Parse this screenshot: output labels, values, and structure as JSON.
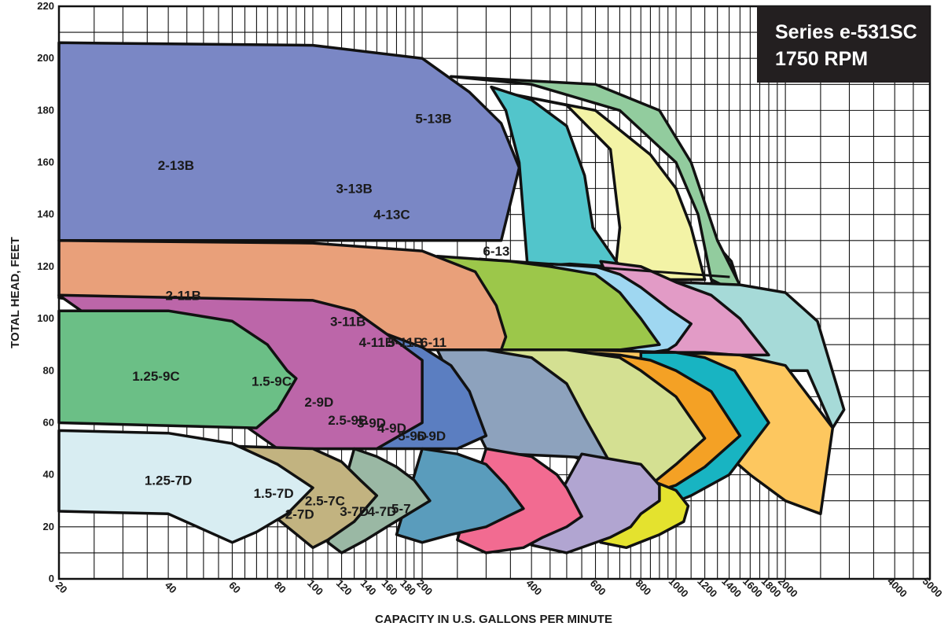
{
  "chart_data": {
    "type": "area",
    "title": "Series e-531SC",
    "subtitle": "1750 RPM",
    "xlabel": "CAPACITY IN U.S. GALLONS PER MINUTE",
    "ylabel": "TOTAL HEAD, FEET",
    "x_scale": "log",
    "xlim": [
      20,
      5000
    ],
    "ylim": [
      0,
      220
    ],
    "x_ticks": [
      20,
      40,
      60,
      80,
      100,
      120,
      140,
      160,
      180,
      200,
      400,
      600,
      800,
      1000,
      1200,
      1400,
      1600,
      1800,
      2000,
      4000,
      5000
    ],
    "y_ticks": [
      0,
      20,
      40,
      60,
      80,
      100,
      120,
      140,
      160,
      180,
      200,
      220
    ],
    "grid": true,
    "colors": {
      "6-13": "#5c93b8",
      "5-13B": "#92cc9e",
      "4-13C": "#f3f3a6",
      "3-13B": "#52c5cb",
      "2-13B": "#7a87c5",
      "6-11": "#a6dad8",
      "5-11B": "#e29bc6",
      "4-11B": "#9fd7f1",
      "3-11B": "#9cc74a",
      "2-11B": "#e9a07a",
      "6-9D": "#fdc75f",
      "5-9D": "#18b4c2",
      "4-9D": "#f4a125",
      "3-9D": "#d4e092",
      "2.5-9B": "#8da2bd",
      "2-9D": "#5b7ec1",
      "1.5-9C": "#bc66a9",
      "1.25-9C": "#6bbf86",
      "5-7": "#e4e22e",
      "4-7D": "#b1a5d1",
      "3-7D": "#f26b91",
      "2.5-7C": "#5a9cbc",
      "2-7D": "#9ab8a4",
      "1.5-7D": "#c2b380",
      "1.25-7D": "#d8edf2"
    },
    "regions": [
      {
        "name": "6-13",
        "points": [
          [
            1300,
            128
          ],
          [
            1420,
            122
          ],
          [
            1560,
            104
          ],
          [
            1480,
            110
          ],
          [
            1390,
            112
          ],
          [
            1250,
            113
          ]
        ]
      },
      {
        "name": "5-13B",
        "points": [
          [
            240,
            193
          ],
          [
            600,
            190
          ],
          [
            900,
            180
          ],
          [
            1100,
            160
          ],
          [
            1300,
            130
          ],
          [
            1560,
            108
          ],
          [
            1380,
            112
          ],
          [
            1250,
            115
          ],
          [
            1150,
            140
          ],
          [
            1000,
            160
          ],
          [
            700,
            180
          ],
          [
            400,
            190
          ]
        ]
      },
      {
        "name": "4-13C",
        "points": [
          [
            360,
            186
          ],
          [
            600,
            180
          ],
          [
            850,
            163
          ],
          [
            1000,
            150
          ],
          [
            1100,
            135
          ],
          [
            1200,
            115
          ],
          [
            950,
            115
          ],
          [
            850,
            115
          ],
          [
            680,
            118
          ],
          [
            700,
            135
          ],
          [
            660,
            165
          ],
          [
            500,
            182
          ]
        ]
      },
      {
        "name": "3-13B",
        "points": [
          [
            310,
            189
          ],
          [
            400,
            184
          ],
          [
            500,
            174
          ],
          [
            560,
            155
          ],
          [
            590,
            135
          ],
          [
            700,
            120
          ],
          [
            650,
            120
          ],
          [
            510,
            121
          ],
          [
            390,
            120
          ],
          [
            370,
            160
          ],
          [
            340,
            180
          ]
        ]
      },
      {
        "name": "2-13B",
        "points": [
          [
            20,
            206
          ],
          [
            100,
            205
          ],
          [
            200,
            200
          ],
          [
            270,
            187
          ],
          [
            330,
            175
          ],
          [
            370,
            158
          ],
          [
            330,
            130
          ],
          [
            200,
            130
          ],
          [
            20,
            130
          ]
        ]
      },
      {
        "name": "6-11",
        "points": [
          [
            1000,
            114
          ],
          [
            1500,
            113
          ],
          [
            2000,
            110
          ],
          [
            2450,
            99
          ],
          [
            2900,
            65
          ],
          [
            2700,
            58
          ],
          [
            2300,
            80
          ],
          [
            2000,
            80
          ],
          [
            1500,
            85
          ]
        ]
      },
      {
        "name": "5-11B",
        "points": [
          [
            620,
            122
          ],
          [
            800,
            120
          ],
          [
            1000,
            114
          ],
          [
            1250,
            109
          ],
          [
            1500,
            100
          ],
          [
            1800,
            86
          ],
          [
            1450,
            86
          ],
          [
            1200,
            87
          ],
          [
            1000,
            87
          ],
          [
            800,
            88
          ]
        ]
      },
      {
        "name": "4-11B",
        "points": [
          [
            450,
            121
          ],
          [
            600,
            120
          ],
          [
            700,
            117
          ],
          [
            800,
            112
          ],
          [
            950,
            104
          ],
          [
            1100,
            98
          ],
          [
            1000,
            90
          ],
          [
            950,
            88
          ],
          [
            850,
            87
          ],
          [
            700,
            88
          ]
        ]
      },
      {
        "name": "3-11B",
        "points": [
          [
            220,
            124
          ],
          [
            350,
            122
          ],
          [
            450,
            120
          ],
          [
            600,
            117
          ],
          [
            700,
            110
          ],
          [
            800,
            100
          ],
          [
            900,
            90
          ],
          [
            700,
            88
          ],
          [
            500,
            88
          ],
          [
            330,
            88
          ]
        ]
      },
      {
        "name": "2-11B",
        "points": [
          [
            20,
            130
          ],
          [
            100,
            129
          ],
          [
            200,
            126
          ],
          [
            280,
            118
          ],
          [
            320,
            105
          ],
          [
            340,
            93
          ],
          [
            330,
            88
          ],
          [
            300,
            88
          ],
          [
            200,
            88
          ],
          [
            20,
            108
          ]
        ]
      },
      {
        "name": "6-9D",
        "points": [
          [
            550,
            88
          ],
          [
            1000,
            87
          ],
          [
            1500,
            86
          ],
          [
            2000,
            82
          ],
          [
            2700,
            58
          ],
          [
            2500,
            25
          ],
          [
            2000,
            30
          ],
          [
            1600,
            40
          ],
          [
            1200,
            55
          ]
        ]
      },
      {
        "name": "5-9D",
        "points": [
          [
            800,
            87
          ],
          [
            1000,
            87
          ],
          [
            1200,
            85
          ],
          [
            1450,
            80
          ],
          [
            1800,
            60
          ],
          [
            1400,
            40
          ],
          [
            1100,
            32
          ],
          [
            900,
            27
          ],
          [
            800,
            25
          ]
        ]
      },
      {
        "name": "4-9D",
        "points": [
          [
            440,
            88
          ],
          [
            700,
            86
          ],
          [
            850,
            84
          ],
          [
            1000,
            80
          ],
          [
            1250,
            72
          ],
          [
            1500,
            55
          ],
          [
            1200,
            43
          ],
          [
            1000,
            36
          ],
          [
            850,
            33
          ]
        ]
      },
      {
        "name": "3-9D",
        "points": [
          [
            300,
            88
          ],
          [
            500,
            88
          ],
          [
            700,
            85
          ],
          [
            800,
            80
          ],
          [
            1000,
            70
          ],
          [
            1200,
            54
          ],
          [
            1000,
            44
          ],
          [
            850,
            36
          ],
          [
            800,
            38
          ],
          [
            700,
            40
          ],
          [
            500,
            48
          ],
          [
            400,
            52
          ]
        ]
      },
      {
        "name": "2.5-9B",
        "points": [
          [
            220,
            88
          ],
          [
            300,
            88
          ],
          [
            400,
            85
          ],
          [
            500,
            75
          ],
          [
            560,
            62
          ],
          [
            650,
            46
          ],
          [
            500,
            47
          ],
          [
            350,
            48
          ],
          [
            300,
            50
          ]
        ]
      },
      {
        "name": "2-9D",
        "points": [
          [
            160,
            94
          ],
          [
            200,
            89
          ],
          [
            240,
            82
          ],
          [
            270,
            72
          ],
          [
            300,
            55
          ],
          [
            250,
            50
          ],
          [
            150,
            50
          ],
          [
            90,
            50
          ]
        ]
      },
      {
        "name": "1.5-9C",
        "points": [
          [
            20,
            109
          ],
          [
            100,
            107
          ],
          [
            130,
            103
          ],
          [
            160,
            94
          ],
          [
            200,
            84
          ],
          [
            200,
            60
          ],
          [
            150,
            50
          ],
          [
            100,
            50
          ],
          [
            80,
            50
          ]
        ]
      },
      {
        "name": "1.25-9C",
        "points": [
          [
            20,
            103
          ],
          [
            40,
            103
          ],
          [
            60,
            99
          ],
          [
            75,
            90
          ],
          [
            85,
            80
          ],
          [
            90,
            77
          ],
          [
            80,
            65
          ],
          [
            70,
            58
          ],
          [
            20,
            60
          ]
        ]
      },
      {
        "name": "5-7",
        "points": [
          [
            780,
            40
          ],
          [
            1000,
            34
          ],
          [
            1080,
            28
          ],
          [
            1050,
            22
          ],
          [
            900,
            17
          ],
          [
            730,
            12
          ],
          [
            620,
            14
          ]
        ]
      },
      {
        "name": "4-7D",
        "points": [
          [
            550,
            48
          ],
          [
            800,
            44
          ],
          [
            900,
            36
          ],
          [
            900,
            30
          ],
          [
            800,
            25
          ],
          [
            750,
            20
          ],
          [
            660,
            16
          ],
          [
            500,
            10
          ],
          [
            400,
            13
          ]
        ]
      },
      {
        "name": "3-7D",
        "points": [
          [
            300,
            50
          ],
          [
            400,
            47
          ],
          [
            470,
            40
          ],
          [
            500,
            35
          ],
          [
            550,
            24
          ],
          [
            500,
            20
          ],
          [
            430,
            16
          ],
          [
            380,
            12
          ],
          [
            300,
            10
          ],
          [
            250,
            15
          ]
        ]
      },
      {
        "name": "2.5-7C",
        "points": [
          [
            200,
            50
          ],
          [
            250,
            48
          ],
          [
            300,
            44
          ],
          [
            340,
            36
          ],
          [
            380,
            27
          ],
          [
            300,
            20
          ],
          [
            240,
            17
          ],
          [
            200,
            14
          ],
          [
            170,
            17
          ]
        ]
      },
      {
        "name": "2-7D",
        "points": [
          [
            130,
            50
          ],
          [
            150,
            47
          ],
          [
            170,
            43
          ],
          [
            190,
            38
          ],
          [
            210,
            30
          ],
          [
            160,
            20
          ],
          [
            140,
            15
          ],
          [
            120,
            10
          ],
          [
            110,
            14
          ]
        ]
      },
      {
        "name": "1.5-7D",
        "points": [
          [
            60,
            51
          ],
          [
            100,
            50
          ],
          [
            120,
            45
          ],
          [
            135,
            38
          ],
          [
            150,
            32
          ],
          [
            130,
            22
          ],
          [
            110,
            15
          ],
          [
            100,
            12
          ],
          [
            80,
            23
          ]
        ]
      },
      {
        "name": "1.25-7D",
        "points": [
          [
            20,
            57
          ],
          [
            40,
            56
          ],
          [
            60,
            52
          ],
          [
            80,
            44
          ],
          [
            100,
            35
          ],
          [
            85,
            25
          ],
          [
            70,
            18
          ],
          [
            60,
            14
          ],
          [
            40,
            25
          ],
          [
            20,
            26
          ]
        ]
      }
    ],
    "labels": [
      {
        "text": "2-13B",
        "x": 42,
        "y": 159
      },
      {
        "text": "3-13B",
        "x": 130,
        "y": 150
      },
      {
        "text": "4-13C",
        "x": 165,
        "y": 140
      },
      {
        "text": "5-13B",
        "x": 215,
        "y": 177
      },
      {
        "text": "6-13",
        "x": 320,
        "y": 126
      },
      {
        "text": "2-11B",
        "x": 44,
        "y": 109
      },
      {
        "text": "3-11B",
        "x": 125,
        "y": 99
      },
      {
        "text": "4-11B",
        "x": 150,
        "y": 91
      },
      {
        "text": "5-11B",
        "x": 180,
        "y": 91
      },
      {
        "text": "6-11",
        "x": 215,
        "y": 91
      },
      {
        "text": "1.25-9C",
        "x": 37,
        "y": 78
      },
      {
        "text": "1.5-9C",
        "x": 77,
        "y": 76
      },
      {
        "text": "2-9D",
        "x": 104,
        "y": 68
      },
      {
        "text": "2.5-9B",
        "x": 125,
        "y": 61
      },
      {
        "text": "3-9D",
        "x": 145,
        "y": 60
      },
      {
        "text": "4-9D",
        "x": 165,
        "y": 58
      },
      {
        "text": "5-9D",
        "x": 188,
        "y": 55
      },
      {
        "text": "6-9D",
        "x": 212,
        "y": 55
      },
      {
        "text": "1.25-7D",
        "x": 40,
        "y": 38
      },
      {
        "text": "1.5-7D",
        "x": 78,
        "y": 33
      },
      {
        "text": "2-7D",
        "x": 92,
        "y": 25
      },
      {
        "text": "2.5-7C",
        "x": 108,
        "y": 30
      },
      {
        "text": "3-7D",
        "x": 130,
        "y": 26
      },
      {
        "text": "4-7D",
        "x": 155,
        "y": 26
      },
      {
        "text": "5-7",
        "x": 175,
        "y": 27
      }
    ]
  }
}
